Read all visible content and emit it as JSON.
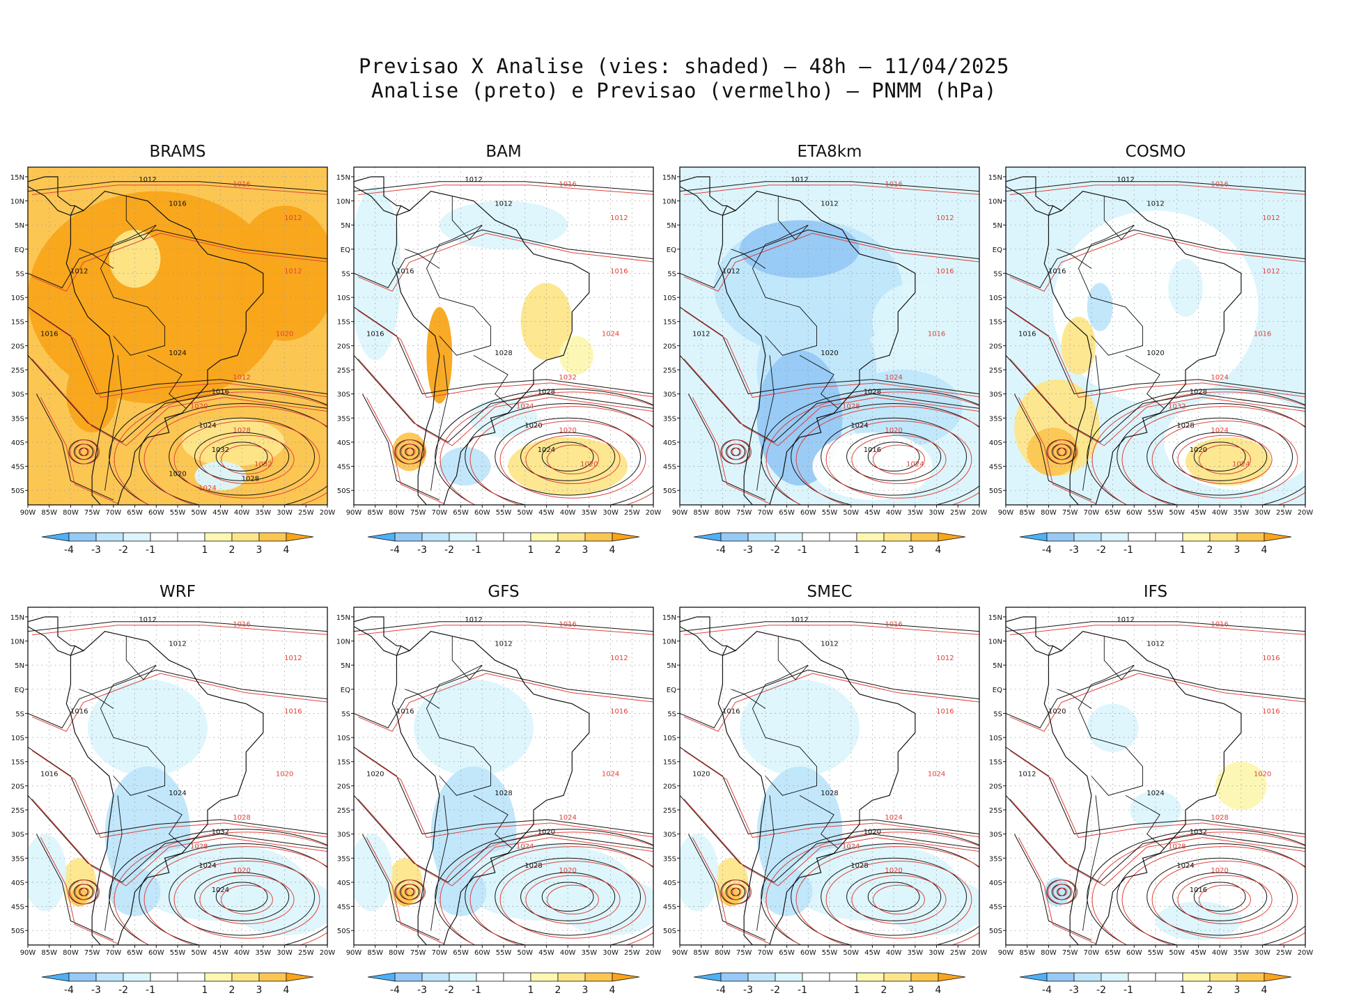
{
  "header": {
    "title_line1": "Previsao X Analise (vies: shaded) – 48h – 11/04/2025",
    "title_line2": "Analise (preto) e Previsao (vermelho) – PNMM (hPa)"
  },
  "colors": {
    "neg4": "#4fb0f5",
    "neg3": "#96c9f6",
    "neg2": "#bfe6fb",
    "neg1": "#dcf5fc",
    "near0": "#ffffff",
    "pos1": "#fdf7b2",
    "pos2": "#fde68a",
    "pos3": "#fcc653",
    "pos4": "#f9a51a",
    "analysis": "#111111",
    "forecast": "#e0413a",
    "land_border": "#111111"
  },
  "chart_data": [
    {
      "type": "heatmap",
      "model": "BRAMS",
      "title": "BRAMS",
      "bias_pattern": "warm",
      "x_ticks": [
        "90W",
        "85W",
        "80W",
        "75W",
        "70W",
        "65W",
        "60W",
        "55W",
        "50W",
        "45W",
        "40W",
        "35W",
        "30W",
        "25W",
        "20W"
      ],
      "y_ticks": [
        "15N",
        "10N",
        "5N",
        "EQ",
        "5S",
        "10S",
        "15S",
        "20S",
        "25S",
        "30S",
        "35S",
        "40S",
        "45S",
        "50S"
      ],
      "xlim": [
        -90,
        -20
      ],
      "ylim": [
        -53,
        17
      ],
      "colorbar": [
        "-4",
        "-3",
        "-2",
        "-1",
        "1",
        "2",
        "3",
        "4"
      ],
      "isobar_labels": [
        "1012",
        "1016",
        "1016",
        "1012",
        "1012",
        "1012",
        "1016",
        "1020",
        "1024",
        "1012",
        "1016",
        "1020",
        "1024",
        "1028",
        "1032",
        "1032",
        "1020",
        "1024",
        "1028"
      ]
    },
    {
      "type": "heatmap",
      "model": "BAM",
      "title": "BAM",
      "bias_pattern": "mixed",
      "x_ticks": [
        "90W",
        "85W",
        "80W",
        "75W",
        "70W",
        "65W",
        "60W",
        "55W",
        "50W",
        "45W",
        "40W",
        "35W",
        "30W",
        "25W",
        "20W"
      ],
      "y_ticks": [
        "15N",
        "10N",
        "5N",
        "EQ",
        "5S",
        "10S",
        "15S",
        "20S",
        "25S",
        "30S",
        "35S",
        "40S",
        "45S",
        "50S"
      ],
      "xlim": [
        -90,
        -20
      ],
      "ylim": [
        -53,
        17
      ],
      "colorbar": [
        "-4",
        "-3",
        "-2",
        "-1",
        "1",
        "2",
        "3",
        "4"
      ],
      "isobar_labels": [
        "1012",
        "1016",
        "1012",
        "1012",
        "1016",
        "1016",
        "1016",
        "1024",
        "1028",
        "1032",
        "1028",
        "1024",
        "1020",
        "1020",
        "1024",
        "1020"
      ]
    },
    {
      "type": "heatmap",
      "model": "ETA8km",
      "title": "ETA8km",
      "bias_pattern": "cold",
      "x_ticks": [
        "90W",
        "85W",
        "80W",
        "75W",
        "70W",
        "65W",
        "60W",
        "55W",
        "50W",
        "45W",
        "40W",
        "35W",
        "30W",
        "25W",
        "20W"
      ],
      "y_ticks": [
        "15N",
        "10N",
        "5N",
        "EQ",
        "5S",
        "10S",
        "15S",
        "20S",
        "25S",
        "30S",
        "35S",
        "40S",
        "45S",
        "50S"
      ],
      "xlim": [
        -90,
        -20
      ],
      "ylim": [
        -53,
        17
      ],
      "colorbar": [
        "-4",
        "-3",
        "-2",
        "-1",
        "1",
        "2",
        "3",
        "4"
      ],
      "isobar_labels": [
        "1012",
        "1016",
        "1012",
        "1012",
        "1012",
        "1016",
        "1012",
        "1016",
        "1020",
        "1024",
        "1028",
        "1028",
        "1024",
        "1020",
        "1016",
        "1024"
      ]
    },
    {
      "type": "heatmap",
      "model": "COSMO",
      "title": "COSMO",
      "bias_pattern": "mixed-south",
      "x_ticks": [
        "90W",
        "85W",
        "80W",
        "75W",
        "70W",
        "65W",
        "60W",
        "55W",
        "50W",
        "45W",
        "40W",
        "35W",
        "30W",
        "25W",
        "20W"
      ],
      "y_ticks": [
        "15N",
        "10N",
        "5N",
        "EQ",
        "5S",
        "10S",
        "15S",
        "20S",
        "25S",
        "30S",
        "35S",
        "40S",
        "45S",
        "50S"
      ],
      "xlim": [
        -90,
        -20
      ],
      "ylim": [
        -53,
        17
      ],
      "colorbar": [
        "-4",
        "-3",
        "-2",
        "-1",
        "1",
        "2",
        "3",
        "4"
      ],
      "isobar_labels": [
        "1012",
        "1016",
        "1012",
        "1012",
        "1016",
        "1012",
        "1016",
        "1016",
        "1020",
        "1024",
        "1028",
        "1032",
        "1028",
        "1024",
        "1020",
        "1024"
      ]
    },
    {
      "type": "heatmap",
      "model": "WRF",
      "title": "WRF",
      "bias_pattern": "cold-south",
      "x_ticks": [
        "90W",
        "85W",
        "80W",
        "75W",
        "70W",
        "65W",
        "60W",
        "55W",
        "50W",
        "45W",
        "40W",
        "35W",
        "30W",
        "25W",
        "20W"
      ],
      "y_ticks": [
        "15N",
        "10N",
        "5N",
        "EQ",
        "5S",
        "10S",
        "15S",
        "20S",
        "25S",
        "30S",
        "35S",
        "40S",
        "45S",
        "50S"
      ],
      "xlim": [
        -90,
        -20
      ],
      "ylim": [
        -53,
        17
      ],
      "colorbar": [
        "-4",
        "-3",
        "-2",
        "-1",
        "1",
        "2",
        "3",
        "4"
      ],
      "isobar_labels": [
        "1012",
        "1016",
        "1012",
        "1012",
        "1016",
        "1016",
        "1016",
        "1020",
        "1024",
        "1028",
        "1032",
        "1028",
        "1024",
        "1020",
        "1024"
      ]
    },
    {
      "type": "heatmap",
      "model": "GFS",
      "title": "GFS",
      "bias_pattern": "cold-south",
      "x_ticks": [
        "90W",
        "85W",
        "80W",
        "75W",
        "70W",
        "65W",
        "60W",
        "55W",
        "50W",
        "45W",
        "40W",
        "35W",
        "30W",
        "25W",
        "20W"
      ],
      "y_ticks": [
        "15N",
        "10N",
        "5N",
        "EQ",
        "5S",
        "10S",
        "15S",
        "20S",
        "25S",
        "30S",
        "35S",
        "40S",
        "45S",
        "50S"
      ],
      "xlim": [
        -90,
        -20
      ],
      "ylim": [
        -53,
        17
      ],
      "colorbar": [
        "-4",
        "-3",
        "-2",
        "-1",
        "1",
        "2",
        "3",
        "4"
      ],
      "isobar_labels": [
        "1012",
        "1016",
        "1012",
        "1012",
        "1016",
        "1016",
        "1020",
        "1024",
        "1028",
        "1024",
        "1020",
        "1024",
        "1028",
        "1020"
      ]
    },
    {
      "type": "heatmap",
      "model": "SMEC",
      "title": "SMEC",
      "bias_pattern": "cold-south",
      "x_ticks": [
        "90W",
        "85W",
        "80W",
        "75W",
        "70W",
        "65W",
        "60W",
        "55W",
        "50W",
        "45W",
        "40W",
        "35W",
        "30W",
        "25W",
        "20W"
      ],
      "y_ticks": [
        "15N",
        "10N",
        "5N",
        "EQ",
        "5S",
        "10S",
        "15S",
        "20S",
        "25S",
        "30S",
        "35S",
        "40S",
        "45S",
        "50S"
      ],
      "xlim": [
        -90,
        -20
      ],
      "ylim": [
        -53,
        17
      ],
      "colorbar": [
        "-4",
        "-3",
        "-2",
        "-1",
        "1",
        "2",
        "3",
        "4"
      ],
      "isobar_labels": [
        "1012",
        "1016",
        "1012",
        "1012",
        "1016",
        "1016",
        "1020",
        "1024",
        "1028",
        "1024",
        "1020",
        "1024",
        "1028",
        "1020"
      ]
    },
    {
      "type": "heatmap",
      "model": "IFS",
      "title": "IFS",
      "bias_pattern": "neutral",
      "x_ticks": [
        "90W",
        "85W",
        "80W",
        "75W",
        "70W",
        "65W",
        "60W",
        "55W",
        "50W",
        "45W",
        "40W",
        "35W",
        "30W",
        "25W",
        "20W"
      ],
      "y_ticks": [
        "15N",
        "10N",
        "5N",
        "EQ",
        "5S",
        "10S",
        "15S",
        "20S",
        "25S",
        "30S",
        "35S",
        "40S",
        "45S",
        "50S"
      ],
      "xlim": [
        -90,
        -20
      ],
      "ylim": [
        -53,
        17
      ],
      "colorbar": [
        "-4",
        "-3",
        "-2",
        "-1",
        "1",
        "2",
        "3",
        "4"
      ],
      "isobar_labels": [
        "1012",
        "1016",
        "1012",
        "1016",
        "1020",
        "1016",
        "1012",
        "1020",
        "1024",
        "1028",
        "1032",
        "1028",
        "1024",
        "1020",
        "1016"
      ]
    }
  ]
}
